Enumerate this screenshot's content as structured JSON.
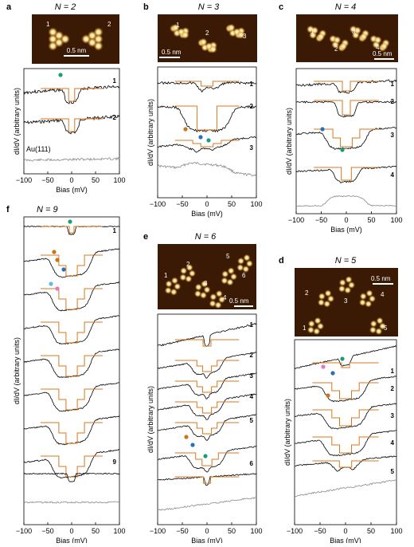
{
  "panels": {
    "a": {
      "letter": "a",
      "title": "N = 2",
      "scalebar": "0.5 nm",
      "img_numbers": [
        "1",
        "2"
      ],
      "curve_numbers": [
        "1",
        "2"
      ],
      "ref_label": "Au(111)",
      "xlabel": "Bias (mV)",
      "ylabel": "dI/dV (arbitrary units)",
      "xticks": [
        "−100",
        "−50",
        "0",
        "50",
        "100"
      ]
    },
    "b": {
      "letter": "b",
      "title": "N = 3",
      "scalebar": "0.5 nm",
      "img_numbers": [
        "1",
        "2",
        "3"
      ],
      "curve_numbers": [
        "1",
        "2",
        "3"
      ],
      "xlabel": "Bias (mV)",
      "ylabel": "dI/dV (arbitrary units)",
      "xticks": [
        "−100",
        "−50",
        "0",
        "50",
        "100"
      ]
    },
    "c": {
      "letter": "c",
      "title": "N = 4",
      "scalebar": "0.5 nm",
      "img_numbers": [
        "1",
        "2",
        "3",
        "4"
      ],
      "curve_numbers": [
        "1",
        "2",
        "3",
        "4"
      ],
      "xlabel": "Bias (mV)",
      "ylabel": "dI/dV (arbitrary units)",
      "xticks": [
        "−100",
        "−50",
        "0",
        "50",
        "100"
      ]
    },
    "f": {
      "letter": "f",
      "title": "N = 9",
      "curve_numbers": [
        "1",
        "9"
      ],
      "xlabel": "Bias (mV)",
      "ylabel": "dI/dV (arbitrary units)",
      "xticks": [
        "−100",
        "−50",
        "0",
        "50",
        "100"
      ]
    },
    "e": {
      "letter": "e",
      "title": "N = 6",
      "scalebar": "0.5 nm",
      "img_numbers": [
        "1",
        "2",
        "3",
        "4",
        "5",
        "6"
      ],
      "curve_numbers": [
        "1",
        "2",
        "3",
        "4",
        "5",
        "6"
      ],
      "xlabel": "Bias (mV)",
      "ylabel": "dI/dV (arbitrary units)",
      "xticks": [
        "−100",
        "−50",
        "0",
        "50",
        "100"
      ]
    },
    "d": {
      "letter": "d",
      "title": "N = 5",
      "scalebar": "0.5 nm",
      "img_numbers": [
        "1",
        "2",
        "3",
        "4",
        "5"
      ],
      "curve_numbers": [
        "1",
        "2",
        "3",
        "4",
        "5"
      ],
      "xlabel": "Bias (mV)",
      "ylabel": "dI/dV (arbitrary units)",
      "xticks": [
        "−100",
        "−50",
        "0",
        "50",
        "100"
      ]
    }
  },
  "colors": {
    "data": "#000000",
    "fit": "#d9771e",
    "reference": "#8a8a8a",
    "marker_teal": "#1a9e78",
    "marker_orange": "#c8761c",
    "marker_blue": "#2b6fb8",
    "marker_pink": "#e07ab8",
    "marker_lightblue": "#66b7e3",
    "stm_dark": "#3b1a05",
    "stm_bright": "#ffe9a0"
  }
}
